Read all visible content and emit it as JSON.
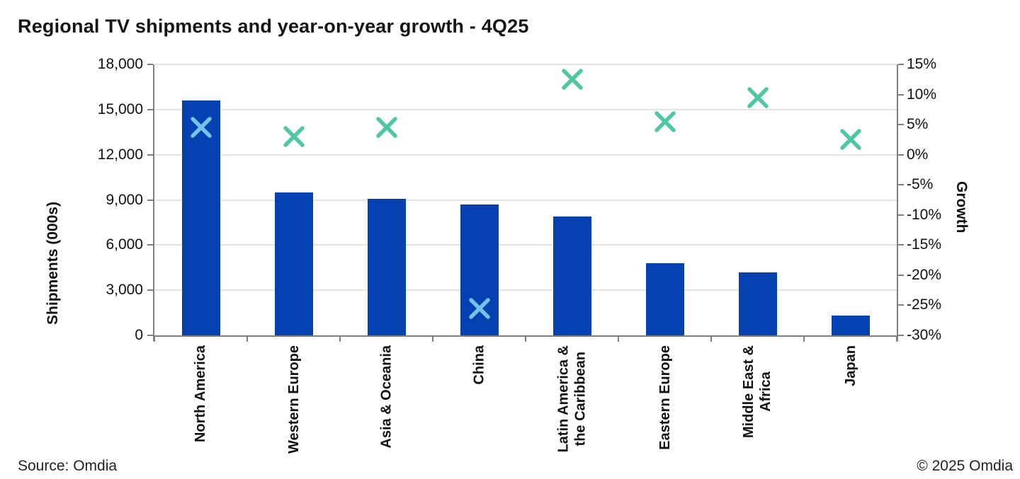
{
  "title": "Regional TV shipments and year-on-year growth - 4Q25",
  "footer": {
    "source": "Source: Omdia",
    "copyright": "© 2025 Omdia"
  },
  "chart_data": {
    "type": "combo: bar + scatter(x-markers)",
    "title": "Regional TV shipments and year-on-year growth - 4Q25",
    "categories": [
      "North America",
      "Western Europe",
      "Asia & Oceania",
      "China",
      "Latin America &\nthe Caribbean",
      "Eastern Europe",
      "Middle East &\nAfrica",
      "Japan"
    ],
    "series": [
      {
        "name": "Shipments (000s)",
        "type": "bar",
        "axis": "left",
        "values": [
          15600,
          9500,
          9050,
          8700,
          7900,
          4800,
          4200,
          1300
        ]
      },
      {
        "name": "Growth",
        "type": "scatter",
        "marker": "x",
        "axis": "right",
        "values_pct": [
          4.5,
          3,
          4.5,
          -25.5,
          12.5,
          5.5,
          9.5,
          2.5
        ]
      }
    ],
    "left_axis": {
      "label": "Shipments (000s)",
      "min": 0,
      "max": 18000,
      "step": 3000,
      "tick_labels_bottom_up": [
        "0",
        "3,000",
        "6,000",
        "9,000",
        "12,000",
        "15,000",
        "18,000"
      ]
    },
    "right_axis": {
      "label": "Growth",
      "min": -30,
      "max": 15,
      "step": 5,
      "tick_labels_top_down": [
        "15%",
        "10%",
        "5%",
        "0%",
        "-5%",
        "-10%",
        "-15%",
        "-20%",
        "-25%",
        "-30%"
      ]
    },
    "grid": "horizontal-only",
    "legend": "none",
    "colors": {
      "bar": "#0641B2",
      "marker": "#4FC7A5",
      "marker_on_bar": "#74C3EA",
      "axis": "#7f7f7f",
      "grid": "#e4e4e4",
      "text": "#111111"
    }
  }
}
